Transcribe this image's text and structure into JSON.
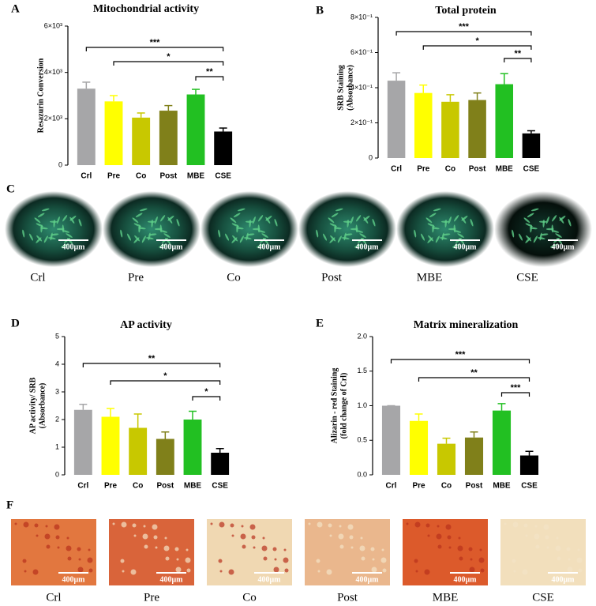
{
  "chart_data": [
    {
      "type": "bar",
      "panel": "A",
      "title": "Mitochondrial activity",
      "ylabel": [
        "Resazurin Conversion"
      ],
      "categories": [
        "Crl",
        "Pre",
        "Co",
        "Post",
        "MBE",
        "CSE"
      ],
      "values": [
        3300,
        2750,
        2050,
        2350,
        3050,
        1450
      ],
      "errors": [
        280,
        250,
        200,
        220,
        220,
        150
      ],
      "colors": [
        "#a6a6a8",
        "#ffff00",
        "#c8c800",
        "#80801a",
        "#22c022",
        "#000000"
      ],
      "ylim": [
        0,
        6000
      ],
      "yticks": [
        0,
        {
          "value": 2000,
          "label": "2×10³"
        },
        {
          "value": 4000,
          "label": "4×10³"
        },
        {
          "value": 6000,
          "label": "6×10³"
        }
      ],
      "brackets": [
        {
          "label": "***",
          "from": "Crl",
          "to": "CSE"
        },
        {
          "label": "*",
          "from": "Pre",
          "to": "CSE"
        },
        {
          "label": "**",
          "from": "MBE",
          "to": "CSE"
        }
      ]
    },
    {
      "type": "bar",
      "panel": "B",
      "title": "Total protein",
      "ylabel": [
        "SRB Staining",
        "(Absorbance)"
      ],
      "categories": [
        "Crl",
        "Pre",
        "Co",
        "Post",
        "MBE",
        "CSE"
      ],
      "values": [
        0.44,
        0.37,
        0.32,
        0.33,
        0.42,
        0.14
      ],
      "errors": [
        0.045,
        0.045,
        0.04,
        0.04,
        0.06,
        0.015
      ],
      "colors": [
        "#a6a6a8",
        "#ffff00",
        "#c8c800",
        "#80801a",
        "#22c022",
        "#000000"
      ],
      "ylim": [
        0,
        0.8
      ],
      "yticks": [
        0,
        {
          "value": 0.2,
          "label": "2×10⁻¹"
        },
        {
          "value": 0.4,
          "label": "4×10⁻¹"
        },
        {
          "value": 0.6,
          "label": "6×10⁻¹"
        },
        {
          "value": 0.8,
          "label": "8×10⁻¹"
        }
      ],
      "brackets": [
        {
          "label": "***",
          "from": "Crl",
          "to": "CSE"
        },
        {
          "label": "*",
          "from": "Pre",
          "to": "CSE"
        },
        {
          "label": "**",
          "from": "MBE",
          "to": "CSE"
        }
      ]
    },
    {
      "type": "bar",
      "panel": "D",
      "title": "AP activity",
      "ylabel": [
        "AP activity/ SRB",
        "(Absorbance)"
      ],
      "categories": [
        "Crl",
        "Pre",
        "Co",
        "Post",
        "MBE",
        "CSE"
      ],
      "values": [
        2.35,
        2.1,
        1.7,
        1.3,
        2.0,
        0.8
      ],
      "errors": [
        0.2,
        0.3,
        0.5,
        0.25,
        0.3,
        0.15
      ],
      "colors": [
        "#a6a6a8",
        "#ffff00",
        "#c8c800",
        "#80801a",
        "#22c022",
        "#000000"
      ],
      "ylim": [
        0,
        5
      ],
      "yticks": [
        0,
        1,
        2,
        3,
        4,
        5
      ],
      "brackets": [
        {
          "label": "**",
          "from": "Crl",
          "to": "CSE"
        },
        {
          "label": "*",
          "from": "Pre",
          "to": "CSE"
        },
        {
          "label": "*",
          "from": "MBE",
          "to": "CSE"
        }
      ]
    },
    {
      "type": "bar",
      "panel": "E",
      "title": "Matrix mineralization",
      "ylabel": [
        "Alizarin - red Staining",
        "(fold change of Crl)"
      ],
      "categories": [
        "Crl",
        "Pre",
        "Co",
        "Post",
        "MBE",
        "CSE"
      ],
      "values": [
        1.0,
        0.78,
        0.45,
        0.54,
        0.93,
        0.28
      ],
      "errors": [
        0,
        0.1,
        0.08,
        0.08,
        0.1,
        0.06
      ],
      "colors": [
        "#a6a6a8",
        "#ffff00",
        "#c8c800",
        "#80801a",
        "#22c022",
        "#000000"
      ],
      "ylim": [
        0,
        2.0
      ],
      "yticks": [
        {
          "value": 0,
          "label": "0.0"
        },
        {
          "value": 0.5,
          "label": "0.5"
        },
        {
          "value": 1.0,
          "label": "1.0"
        },
        {
          "value": 1.5,
          "label": "1.5"
        },
        {
          "value": 2.0,
          "label": "2.0"
        }
      ],
      "brackets": [
        {
          "label": "***",
          "from": "Crl",
          "to": "CSE"
        },
        {
          "label": "**",
          "from": "Pre",
          "to": "CSE"
        },
        {
          "label": "***",
          "from": "MBE",
          "to": "CSE"
        }
      ]
    }
  ],
  "image_panels": [
    {
      "panel": "C",
      "images": [
        {
          "caption": "Crl",
          "scale": "400μm"
        },
        {
          "caption": "Pre",
          "scale": "400μm"
        },
        {
          "caption": "Co",
          "scale": "400μm"
        },
        {
          "caption": "Post",
          "scale": "400μm"
        },
        {
          "caption": "MBE",
          "scale": "400μm"
        },
        {
          "caption": "CSE",
          "scale": "400μm"
        }
      ]
    },
    {
      "panel": "F",
      "images": [
        {
          "caption": "Crl",
          "scale": "400μm"
        },
        {
          "caption": "Pre",
          "scale": "400μm"
        },
        {
          "caption": "Co",
          "scale": "400μm"
        },
        {
          "caption": "Post",
          "scale": "400μm"
        },
        {
          "caption": "MBE",
          "scale": "400μm"
        },
        {
          "caption": "CSE",
          "scale": "400μm"
        }
      ]
    }
  ]
}
